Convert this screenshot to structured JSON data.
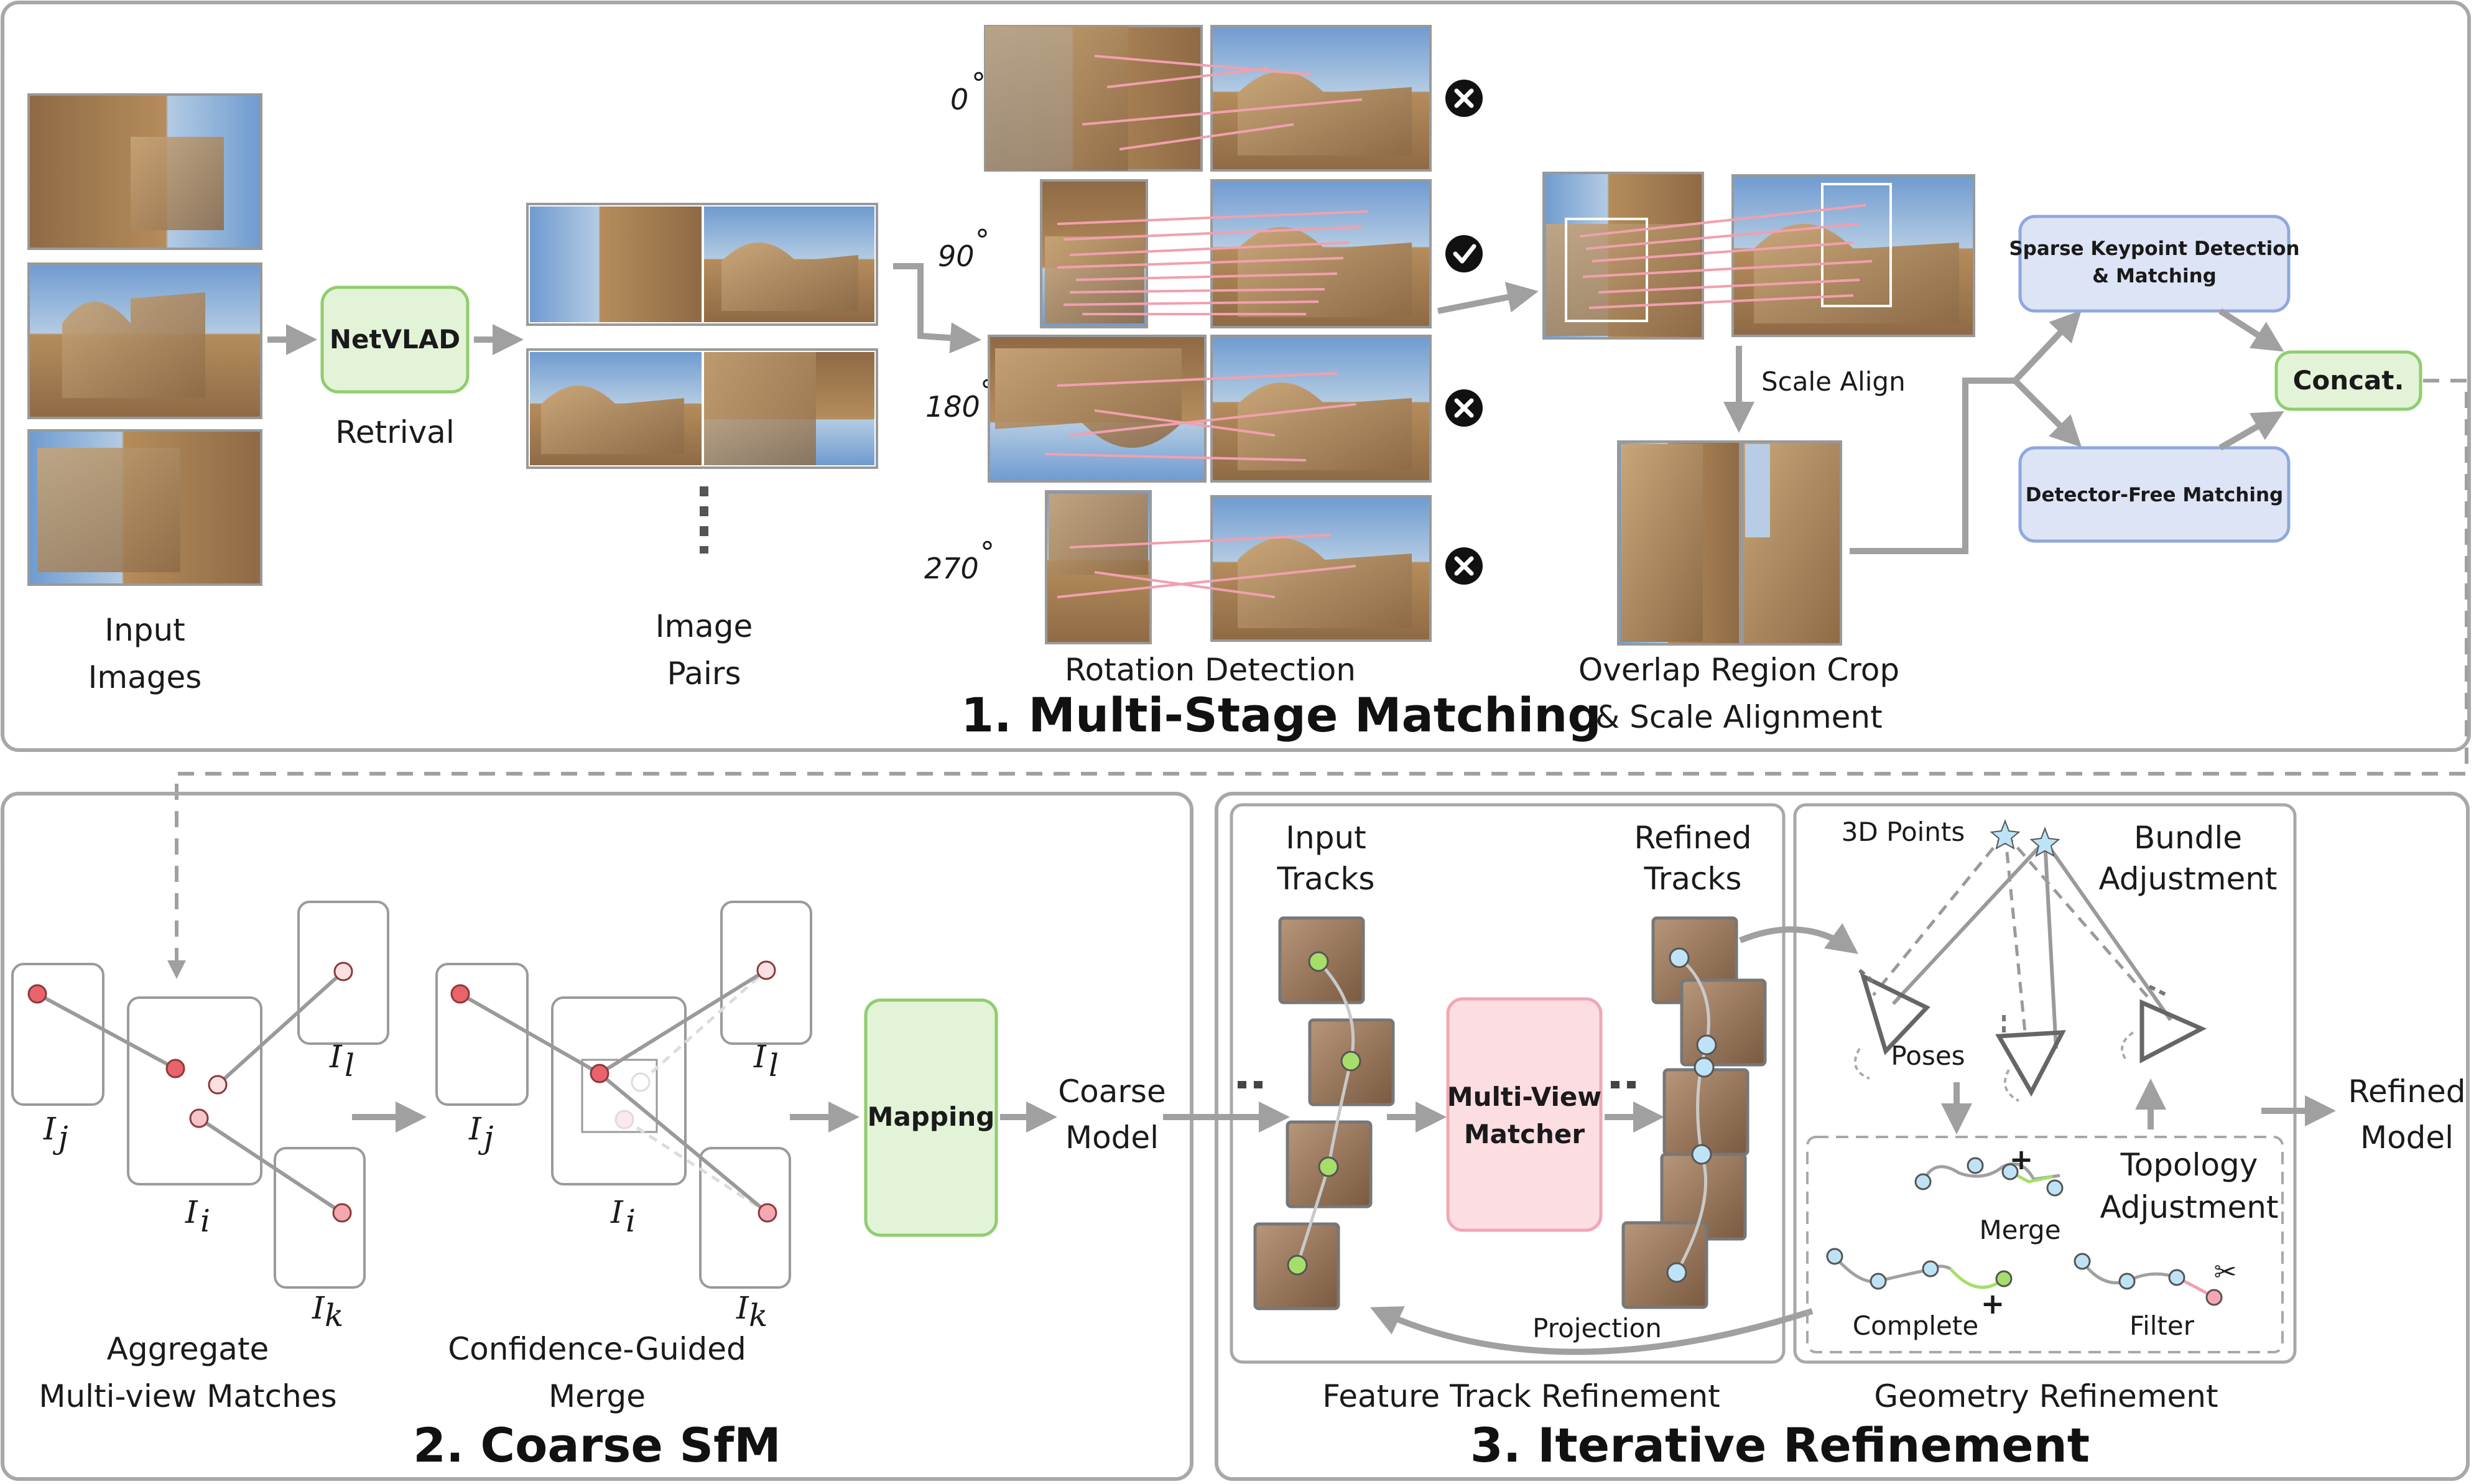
{
  "colors": {
    "panel_border": "#a8a8a8",
    "arrow": "#a0a0a0",
    "green_fill": "#e3f3d8",
    "green_border": "#8fce6e",
    "blue_fill": "#dde4f6",
    "blue_border": "#8fa8de",
    "pink_fill": "#fbdde2",
    "pink_border": "#f1a7b5",
    "match_line": "#f1a0ae",
    "node_red": "#e8646a",
    "node_pink": "#f6c5cc",
    "node_green": "#a6de6a",
    "node_blue": "#bfe3f6",
    "sky": "#7ea8d6",
    "stone": "#b48b5c"
  },
  "stage1": {
    "title": "1. Multi-Stage Matching",
    "input_images_label": [
      "Input",
      "Images"
    ],
    "netvlad_label": "NetVLAD",
    "retrieval_label": "Retrival",
    "image_pairs_label": [
      "Image",
      "Pairs"
    ],
    "rotation_angles": [
      "0",
      "90",
      "180",
      "270"
    ],
    "degree_symbol": "°",
    "rotation_detection_label": "Rotation Detection",
    "scale_align_label": "Scale Align",
    "overlap_crop_label": [
      "Overlap Region Crop",
      "& Scale Alignment"
    ],
    "sparse_box_label": [
      "Sparse Keypoint Detection",
      "& Matching"
    ],
    "detector_free_label": "Detector-Free Matching",
    "concat_label": "Concat."
  },
  "stage2": {
    "title": "2. Coarse SfM",
    "aggregate_label": [
      "Aggregate",
      "Multi-view Matches"
    ],
    "confidence_label": [
      "Confidence-Guided",
      "Merge"
    ],
    "view_labels": {
      "j": "I",
      "j_sub": "j",
      "i": "I",
      "i_sub": "i",
      "l": "I",
      "l_sub": "l",
      "k": "I",
      "k_sub": "k"
    },
    "mapping_label": "Mapping",
    "coarse_model_label": [
      "Coarse",
      "Model"
    ]
  },
  "stage3": {
    "title": "3. Iterative Refinement",
    "input_tracks_label": [
      "Input",
      "Tracks"
    ],
    "refined_tracks_label": [
      "Refined",
      "Tracks"
    ],
    "matcher_label": [
      "Multi-View",
      "Matcher"
    ],
    "projection_label": "Projection",
    "feature_track_label": "Feature Track Refinement",
    "points_3d_label": "3D Points",
    "bundle_label": [
      "Bundle",
      "Adjustment"
    ],
    "poses_label": "Poses",
    "topology_label": [
      "Topology",
      "Adjustment"
    ],
    "merge_label": "Merge",
    "complete_label": "Complete",
    "filter_label": "Filter",
    "geometry_label": "Geometry Refinement",
    "refined_model_label": [
      "Refined",
      "Model"
    ]
  },
  "icons": {
    "reject": "x-circle-icon",
    "accept": "check-circle-icon",
    "plus": "+",
    "scissors": "✂"
  }
}
